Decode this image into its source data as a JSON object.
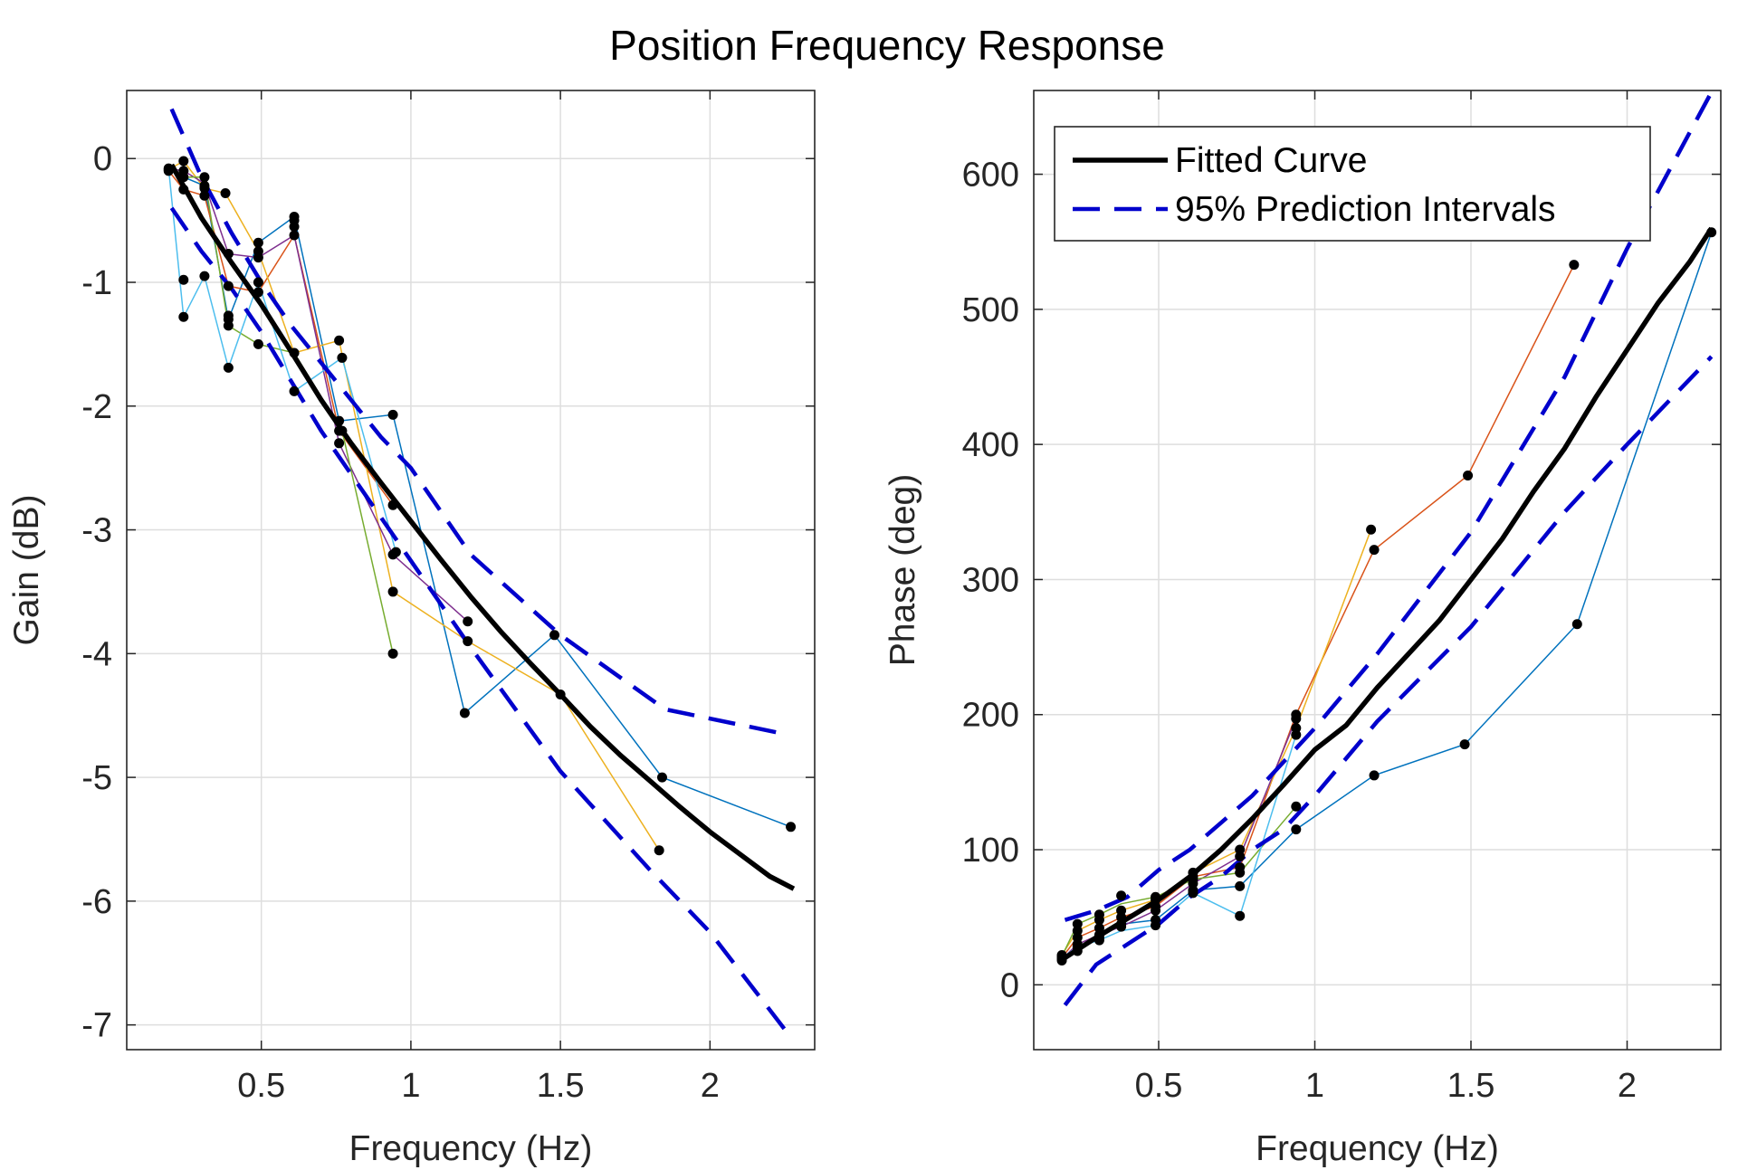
{
  "figure": {
    "title": "Position Frequency Response"
  },
  "colors": {
    "fit": "#000000",
    "interval": "#0000CC",
    "points": "#000000",
    "grid": "#DEDEDE",
    "axes": "#262626",
    "trials": [
      "#0072BD",
      "#D95319",
      "#EDB120",
      "#7E2F8E",
      "#77AC30",
      "#4DBEEE",
      "#A2142F"
    ]
  },
  "chart_data": [
    {
      "type": "line",
      "xlabel": "Frequency (Hz)",
      "ylabel": "Gain (dB)",
      "xlim": [
        0.05,
        2.35
      ],
      "ylim": [
        -7.2,
        0.55
      ],
      "xticks": [
        0.5,
        1,
        1.5,
        2
      ],
      "xtick_labels": [
        "0.5",
        "1",
        "1.5",
        "2"
      ],
      "yticks": [
        -7,
        -6,
        -5,
        -4,
        -3,
        -2,
        -1,
        0
      ],
      "ytick_labels": [
        "-7",
        "-6",
        "-5",
        "-4",
        "-3",
        "-2",
        "-1",
        "0"
      ],
      "grid": true,
      "fitted_curve": {
        "name": "Fitted Curve",
        "x": [
          0.2,
          0.3,
          0.4,
          0.5,
          0.6,
          0.7,
          0.8,
          0.9,
          1.0,
          1.1,
          1.2,
          1.3,
          1.4,
          1.5,
          1.6,
          1.7,
          1.8,
          1.9,
          2.0,
          2.1,
          2.2,
          2.28
        ],
        "y": [
          -0.05,
          -0.48,
          -0.84,
          -1.18,
          -1.56,
          -1.95,
          -2.3,
          -2.62,
          -2.93,
          -3.24,
          -3.54,
          -3.82,
          -4.08,
          -4.33,
          -4.59,
          -4.82,
          -5.03,
          -5.24,
          -5.44,
          -5.62,
          -5.8,
          -5.9
        ]
      },
      "prediction_interval_upper": {
        "name": "95% Prediction Intervals",
        "x": [
          0.2,
          0.3,
          0.4,
          0.5,
          0.6,
          0.7,
          0.8,
          0.9,
          1.0,
          1.2,
          1.5,
          1.85,
          2.25
        ],
        "y": [
          0.4,
          -0.15,
          -0.6,
          -1.0,
          -1.35,
          -1.65,
          -1.95,
          -2.25,
          -2.5,
          -3.2,
          -3.85,
          -4.45,
          -4.65
        ]
      },
      "prediction_interval_lower": {
        "name": "95% Prediction Intervals",
        "x": [
          0.2,
          0.3,
          0.4,
          0.5,
          0.6,
          0.7,
          0.8,
          0.9,
          1.0,
          1.2,
          1.5,
          1.8,
          2.0,
          2.27
        ],
        "y": [
          -0.4,
          -0.75,
          -1.05,
          -1.4,
          -1.8,
          -2.2,
          -2.55,
          -2.9,
          -3.25,
          -3.95,
          -4.95,
          -5.75,
          -6.25,
          -7.1
        ]
      },
      "trials": [
        {
          "x": [
            0.19,
            0.24,
            0.31,
            0.39,
            0.49,
            0.61,
            0.76,
            0.94,
            1.18,
            1.48,
            1.84,
            2.27
          ],
          "y": [
            -0.08,
            -0.15,
            -0.22,
            -1.3,
            -0.68,
            -0.47,
            -2.12,
            -2.07,
            -4.48,
            -3.85,
            -5.0,
            -5.4
          ]
        },
        {
          "x": [
            0.19,
            0.24,
            0.31,
            0.39,
            0.49,
            0.61,
            0.76,
            0.94
          ],
          "y": [
            -0.1,
            -0.25,
            -0.3,
            -1.03,
            -1.08,
            -0.62,
            -2.2,
            -2.8
          ]
        },
        {
          "x": [
            0.19,
            0.24,
            0.31,
            0.38,
            0.49,
            0.61,
            0.76,
            0.94,
            1.19,
            1.5,
            1.83
          ],
          "y": [
            -0.09,
            -0.02,
            -0.24,
            -0.28,
            -0.75,
            -1.57,
            -1.47,
            -3.5,
            -3.9,
            -4.33,
            -5.59
          ]
        },
        {
          "x": [
            0.19,
            0.24,
            0.31,
            0.39,
            0.49,
            0.61,
            0.76,
            0.94,
            1.19
          ],
          "y": [
            -0.08,
            -0.1,
            -0.2,
            -0.77,
            -0.8,
            -0.62,
            -2.3,
            -3.2,
            -3.74
          ]
        },
        {
          "x": [
            0.19,
            0.25,
            0.31,
            0.39,
            0.49,
            0.61,
            0.77,
            0.94
          ],
          "y": [
            -0.09,
            -0.15,
            -0.15,
            -1.35,
            -1.5,
            -1.57,
            -2.2,
            -4.0
          ]
        },
        {
          "x": [
            0.19,
            0.24,
            0.31,
            0.39,
            0.49,
            0.61,
            0.77,
            0.95
          ],
          "y": [
            -0.08,
            -1.28,
            -0.95,
            -1.69,
            -1.0,
            -1.88,
            -1.61,
            -3.18
          ]
        }
      ],
      "points": {
        "x": [
          0.19,
          0.19,
          0.19,
          0.24,
          0.24,
          0.24,
          0.24,
          0.24,
          0.24,
          0.31,
          0.31,
          0.31,
          0.31,
          0.31,
          0.39,
          0.39,
          0.38,
          0.39,
          0.39,
          0.39,
          0.39,
          0.49,
          0.49,
          0.49,
          0.49,
          0.49,
          0.49,
          0.61,
          0.61,
          0.61,
          0.61,
          0.61,
          0.61,
          0.76,
          0.76,
          0.76,
          0.76,
          0.77,
          0.77,
          0.94,
          0.94,
          0.94,
          0.94,
          0.94,
          0.95,
          1.18,
          1.19,
          1.19,
          1.48,
          1.5,
          1.83,
          1.84,
          2.27
        ],
        "y": [
          -0.08,
          -0.1,
          -0.09,
          -0.15,
          -0.25,
          -0.02,
          -0.1,
          -1.28,
          -0.98,
          -0.22,
          -0.3,
          -0.24,
          -0.15,
          -0.95,
          -1.3,
          -1.03,
          -0.28,
          -0.77,
          -1.35,
          -1.69,
          -1.27,
          -0.68,
          -1.08,
          -0.75,
          -0.8,
          -1.5,
          -1.0,
          -0.47,
          -0.62,
          -1.57,
          -0.55,
          -1.88,
          -0.5,
          -2.12,
          -2.2,
          -1.47,
          -2.3,
          -2.2,
          -1.61,
          -2.07,
          -2.8,
          -3.5,
          -3.2,
          -4.0,
          -3.18,
          -4.48,
          -3.9,
          -3.74,
          -3.85,
          -4.33,
          -5.59,
          -5.0,
          -5.4
        ]
      }
    },
    {
      "type": "line",
      "xlabel": "Frequency (Hz)",
      "ylabel": "Phase (deg)",
      "xlim": [
        0.1,
        2.3
      ],
      "ylim": [
        -48,
        662
      ],
      "xticks": [
        0.5,
        1,
        1.5,
        2
      ],
      "xtick_labels": [
        "0.5",
        "1",
        "1.5",
        "2"
      ],
      "yticks": [
        0,
        100,
        200,
        300,
        400,
        500,
        600
      ],
      "ytick_labels": [
        "0",
        "100",
        "200",
        "300",
        "400",
        "500",
        "600"
      ],
      "grid": true,
      "legend": {
        "location": "top-left",
        "entries": [
          "Fitted Curve",
          "95% Prediction Intervals"
        ]
      },
      "fitted_curve": {
        "name": "Fitted Curve",
        "x": [
          0.2,
          0.3,
          0.4,
          0.5,
          0.6,
          0.7,
          0.8,
          0.9,
          1.0,
          1.1,
          1.2,
          1.3,
          1.4,
          1.5,
          1.6,
          1.7,
          1.8,
          1.9,
          2.0,
          2.1,
          2.2,
          2.27
        ],
        "y": [
          20,
          35,
          49,
          63,
          80,
          100,
          123,
          148,
          174,
          192,
          220,
          245,
          270,
          300,
          330,
          365,
          397,
          435,
          470,
          505,
          535,
          560
        ]
      },
      "prediction_interval_upper": {
        "name": "95% Prediction Intervals",
        "x": [
          0.2,
          0.3,
          0.4,
          0.5,
          0.6,
          0.7,
          0.8,
          0.9,
          1.0,
          1.2,
          1.5,
          1.8,
          2.0,
          2.28
        ],
        "y": [
          48,
          55,
          65,
          85,
          100,
          120,
          140,
          165,
          190,
          245,
          335,
          450,
          545,
          665
        ]
      },
      "prediction_interval_lower": {
        "name": "95% Prediction Intervals",
        "x": [
          0.2,
          0.3,
          0.4,
          0.5,
          0.6,
          0.7,
          0.8,
          0.9,
          1.0,
          1.2,
          1.5,
          1.8,
          2.0,
          2.27
        ],
        "y": [
          -15,
          15,
          30,
          45,
          65,
          80,
          100,
          115,
          140,
          195,
          265,
          350,
          400,
          465
        ]
      },
      "trials": [
        {
          "x": [
            0.19,
            0.24,
            0.31,
            0.38,
            0.49,
            0.61,
            0.76,
            0.94,
            1.19,
            1.48,
            1.84,
            2.27
          ],
          "y": [
            18,
            25,
            35,
            45,
            48,
            70,
            73,
            115,
            155,
            178,
            267,
            557
          ]
        },
        {
          "x": [
            0.19,
            0.24,
            0.31,
            0.38,
            0.49,
            0.61,
            0.76,
            0.94,
            1.19,
            1.49,
            1.83
          ],
          "y": [
            20,
            35,
            42,
            50,
            58,
            80,
            87,
            200,
            322,
            377,
            533
          ]
        },
        {
          "x": [
            0.19,
            0.24,
            0.31,
            0.38,
            0.49,
            0.61,
            0.76,
            0.94,
            1.18
          ],
          "y": [
            22,
            40,
            48,
            55,
            63,
            83,
            100,
            190,
            337
          ]
        },
        {
          "x": [
            0.19,
            0.24,
            0.31,
            0.38,
            0.49,
            0.61,
            0.76,
            0.94
          ],
          "y": [
            19,
            30,
            37,
            43,
            55,
            75,
            95,
            197
          ]
        },
        {
          "x": [
            0.19,
            0.24,
            0.31,
            0.38,
            0.49,
            0.61,
            0.76,
            0.94
          ],
          "y": [
            21,
            45,
            52,
            60,
            65,
            78,
            83,
            132
          ]
        },
        {
          "x": [
            0.19,
            0.24,
            0.31,
            0.38,
            0.49,
            0.61,
            0.76,
            0.94
          ],
          "y": [
            20,
            28,
            33,
            40,
            44,
            68,
            51,
            185
          ]
        }
      ],
      "points": {
        "x": [
          0.19,
          0.19,
          0.19,
          0.19,
          0.19,
          0.24,
          0.24,
          0.24,
          0.24,
          0.24,
          0.24,
          0.31,
          0.31,
          0.31,
          0.31,
          0.31,
          0.31,
          0.38,
          0.38,
          0.38,
          0.38,
          0.38,
          0.49,
          0.49,
          0.49,
          0.49,
          0.49,
          0.49,
          0.61,
          0.61,
          0.61,
          0.61,
          0.61,
          0.61,
          0.76,
          0.76,
          0.76,
          0.76,
          0.76,
          0.76,
          0.94,
          0.94,
          0.94,
          0.94,
          0.94,
          0.94,
          1.18,
          1.19,
          1.19,
          1.48,
          1.49,
          1.83,
          1.84,
          2.27
        ],
        "y": [
          18,
          20,
          22,
          19,
          21,
          25,
          35,
          40,
          30,
          45,
          28,
          35,
          42,
          48,
          37,
          52,
          33,
          45,
          50,
          55,
          43,
          66,
          48,
          58,
          63,
          55,
          65,
          44,
          70,
          80,
          83,
          75,
          78,
          68,
          73,
          87,
          100,
          95,
          83,
          51,
          115,
          200,
          190,
          197,
          132,
          185,
          337,
          322,
          155,
          178,
          377,
          533,
          267,
          557
        ]
      }
    }
  ]
}
